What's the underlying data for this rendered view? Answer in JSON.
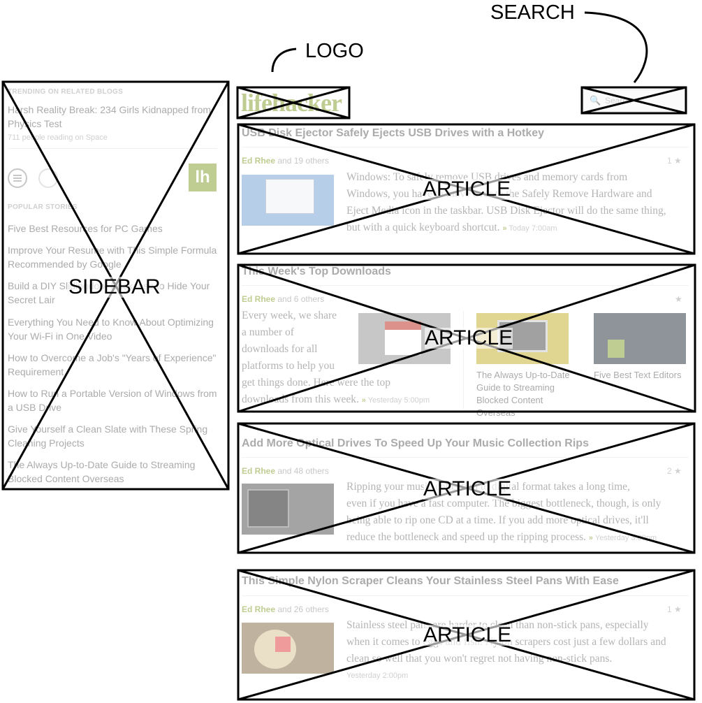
{
  "annotations": {
    "search": "SEARCH",
    "logo": "LOGO"
  },
  "labels": {
    "sidebar": "SIDEBAR",
    "article": "ARTICLE"
  },
  "logo_text": "lifehacker",
  "search_placeholder": "Search",
  "sidebar": {
    "trending_header": "TRENDING ON RELATED BLOGS",
    "trending_title": "Harsh Reality Break: 234 Girls Kidnapped from Physics Test",
    "trending_meta": "711 people reading on Space",
    "lh_badge": "lh",
    "popular_header": "POPULAR STORIES",
    "popular": [
      "Five Best Resources for PC Games",
      "Improve Your Resume with This Simple Formula Recommended by Google",
      "Build a DIY Slidingdoor Bookcase to Hide Your Secret Lair",
      "Everything You Need to Know About Optimizing Your Wi-Fi in One Video",
      "How to Overcome a Job's \"Years of Experience\" Requirement",
      "How to Run a Portable Version of Windows from a USB Drive",
      "Give Yourself a Clean Slate with These Spring Cleaning Projects",
      "The Always Up-to-Date Guide to Streaming Blocked Content Overseas"
    ]
  },
  "articles": [
    {
      "title": "USB Disk Ejector Safely Ejects USB Drives with a Hotkey",
      "author": "Ed Rhee",
      "others": "and 19 others",
      "count": "1 ★",
      "lines": [
        "Windows: To safely remove USB drives and memory cards from",
        "Windows, you have to move over to the Safely Remove Hardware and",
        "Eject Media icon in the taskbar. USB Disk Ejector will do the same thing,",
        "but with a quick keyboard shortcut."
      ],
      "time": "Today 7:00am"
    },
    {
      "title": "This Week's Top Downloads",
      "author": "Ed Rhee",
      "others": "and 6 others",
      "count": "★",
      "lines": [
        "Every week, we share",
        "a number of",
        "downloads for all",
        "platforms to help you",
        "get things done. Here were the top",
        "downloads from this week."
      ],
      "time": "Yesterday 5:00pm",
      "cap1": "The Always Up-to-Date Guide to Streaming Blocked Content Overseas",
      "cap1_lines": [
        "The Always Up-to-Date",
        "Guide to Streaming",
        "Blocked Content Overseas"
      ],
      "cap2": "Five Best Text Editors"
    },
    {
      "title": "Add More Optical Drives To Speed Up Your Music Collection Rips",
      "author": "Ed Rhee",
      "others": "and 48 others",
      "count": "2 ★",
      "lines": [
        "Ripping your music collection to digital format takes a long time,",
        "even if you have a fast computer. The biggest bottleneck, though, is only",
        "being able to rip one CD at a time. If you add more optical drives, it'll",
        "reduce the bottleneck and speed up the ripping process."
      ],
      "time": "Yesterday 3:00pm"
    },
    {
      "title": "This Simple Nylon Scraper Cleans Your Stainless Steel Pans With Ease",
      "author": "Ed Rhee",
      "others": "and 26 others",
      "count": "1 ★",
      "lines": [
        "Stainless steel pans are harder to clean than non-stick pans, especially",
        "when it comes to eggs and fish. Nylon scrapers cost just a few dollars and",
        "clean so well that you won't regret not having non-stick pans."
      ],
      "time": "Yesterday 2:00pm"
    }
  ]
}
